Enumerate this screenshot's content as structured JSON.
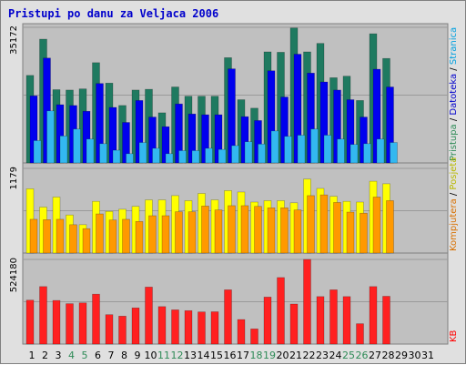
{
  "chart_data": {
    "type": "bar",
    "title": "Pristupi po danu za Veljaca 2006",
    "categories": [
      "1",
      "2",
      "3",
      "4",
      "5",
      "6",
      "7",
      "8",
      "9",
      "10",
      "11",
      "12",
      "13",
      "14",
      "15",
      "16",
      "17",
      "18",
      "19",
      "20",
      "21",
      "22",
      "23",
      "24",
      "25",
      "26",
      "27",
      "28",
      "29",
      "30",
      "31"
    ],
    "weekend_days": [
      "4",
      "5",
      "11",
      "12",
      "18",
      "19",
      "25",
      "26"
    ],
    "colors": {
      "background": "#e0e0e0",
      "plot": "#c0c0c0",
      "weekday_label": "#000000",
      "weekend_label": "#2e8b57",
      "title": "#0000cc"
    },
    "panels": [
      {
        "max_label": "35172",
        "side_labels": [
          {
            "text": "Pristupa",
            "color": "#2e8b57"
          },
          {
            "text": " / ",
            "color": "#000000"
          },
          {
            "text": "Datoteka",
            "color": "#0000cc"
          },
          {
            "text": " / ",
            "color": "#000000"
          },
          {
            "text": "Stranica",
            "color": "#00a0e0"
          }
        ],
        "ylim": [
          0,
          35172
        ],
        "series": [
          {
            "name": "Pristupa",
            "color": "#1f7a60",
            "offset": 0,
            "values": [
              22700,
              32100,
              19000,
              18900,
              19200,
              26000,
              20700,
              14900,
              18900,
              19100,
              13000,
              19700,
              17300,
              17300,
              17300,
              27300,
              16400,
              14200,
              28800,
              28700,
              35000,
              28800,
              31000,
              22100,
              22500,
              16200,
              33500,
              27100,
              0,
              0,
              0
            ]
          },
          {
            "name": "Datoteka",
            "color": "#0000ee",
            "offset": 4,
            "values": [
              17400,
              27200,
              15100,
              14900,
              13400,
              20600,
              14400,
              10500,
              16200,
              11900,
              9400,
              15300,
              12700,
              12500,
              12500,
              24400,
              12000,
              11000,
              23900,
              17100,
              28200,
              23300,
              21000,
              18900,
              16400,
              11900,
              24300,
              19700,
              0,
              0,
              0
            ]
          },
          {
            "name": "Stranica",
            "color": "#33b8f0",
            "offset": 8,
            "values": [
              5800,
              13500,
              7000,
              8800,
              6200,
              5000,
              3300,
              2400,
              5300,
              3800,
              2400,
              3200,
              3200,
              3800,
              3500,
              4500,
              5500,
              4900,
              8300,
              6900,
              7200,
              8800,
              7200,
              6200,
              4800,
              5000,
              6200,
              5300,
              0,
              0,
              0
            ]
          }
        ]
      },
      {
        "max_label": "1179",
        "side_labels": [
          {
            "text": "Kompjutera",
            "color": "#d87000"
          },
          {
            "text": " / ",
            "color": "#000000"
          },
          {
            "text": "Posjeta",
            "color": "#b8b800"
          }
        ],
        "ylim": [
          0,
          1179
        ],
        "series": [
          {
            "name": "Posjeta",
            "color": "#ffff00",
            "offset": 0,
            "values": [
              895,
              640,
              780,
              530,
              395,
              720,
              580,
              610,
              650,
              740,
              740,
              800,
              730,
              830,
              740,
              870,
              850,
              710,
              730,
              730,
              700,
              1030,
              900,
              790,
              720,
              710,
              1000,
              965,
              0,
              0,
              0
            ]
          },
          {
            "name": "Kompjutera",
            "color": "#ff9900",
            "offset": 4,
            "values": [
              470,
              465,
              470,
              395,
              340,
              545,
              460,
              470,
              440,
              520,
              520,
              575,
              575,
              655,
              600,
              660,
              660,
              650,
              630,
              630,
              600,
              800,
              810,
              705,
              570,
              555,
              780,
              730,
              0,
              0,
              0
            ]
          }
        ]
      },
      {
        "max_label": "524180",
        "side_labels": [
          {
            "text": "KB",
            "color": "#ff0000"
          }
        ],
        "ylim": [
          0,
          524180
        ],
        "series": [
          {
            "name": "KB",
            "color": "#ff2020",
            "offset": 0,
            "values": [
              272000,
              356000,
              270000,
              250000,
              255000,
              309000,
              182000,
              173000,
              224000,
              353000,
              232000,
              212000,
              207000,
              199000,
              200000,
              336000,
              152000,
              94000,
              291000,
              412000,
              248000,
              524000,
              294000,
              336000,
              294000,
              126000,
              356000,
              296000,
              0,
              0,
              0
            ]
          }
        ]
      }
    ]
  }
}
